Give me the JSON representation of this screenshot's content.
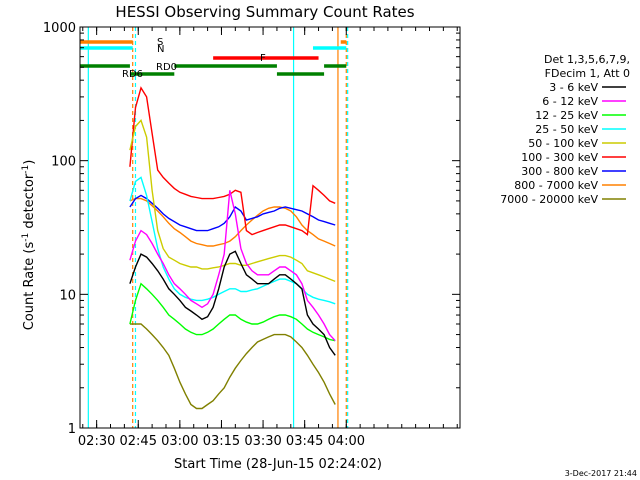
{
  "chart_data": {
    "type": "line",
    "title": "HESSI Observing Summary Count Rates",
    "xlabel": "Start Time (28-Jun-15 02:24:02)",
    "ylabel_main": "Count Rate (s",
    "ylabel_sup1": "-1",
    "ylabel_mid": " detector",
    "ylabel_sup2": "-1",
    "ylabel_end": ")",
    "yscale": "log",
    "ylim": [
      1,
      1000
    ],
    "xlim_minutes": [
      24,
      161
    ],
    "xticks": [
      {
        "minute": 30,
        "label": "02:30"
      },
      {
        "minute": 45,
        "label": "02:45"
      },
      {
        "minute": 60,
        "label": "03:00"
      },
      {
        "minute": 75,
        "label": "03:15"
      },
      {
        "minute": 90,
        "label": "03:30"
      },
      {
        "minute": 105,
        "label": "03:45"
      },
      {
        "minute": 120,
        "label": "04:00"
      }
    ],
    "yticks": [
      {
        "value": 1,
        "label": "1"
      },
      {
        "value": 10,
        "label": "10"
      },
      {
        "value": 100,
        "label": "100"
      },
      {
        "value": 1000,
        "label": "1000"
      }
    ],
    "legend_header": [
      "Det 1,3,5,6,7,9,",
      "FDecim 1, Att 0"
    ],
    "series": [
      {
        "name": "3 - 6 keV",
        "color": "#000000",
        "x": [
          42,
          44,
          46,
          48,
          50,
          52,
          54,
          56,
          58,
          60,
          62,
          64,
          66,
          68,
          70,
          72,
          74,
          76,
          78,
          80,
          82,
          84,
          86,
          88,
          90,
          92,
          94,
          96,
          98,
          100,
          102,
          104,
          106,
          108,
          110,
          112,
          114,
          116
        ],
        "y": [
          12,
          16,
          20,
          19,
          17,
          15,
          13,
          11,
          10,
          9,
          8,
          7.5,
          7,
          6.5,
          6.8,
          8,
          11,
          16,
          20,
          21,
          17,
          14,
          13,
          12,
          12,
          12,
          13,
          14,
          14,
          13,
          12,
          11,
          7,
          6,
          5.5,
          5,
          4,
          3.5
        ]
      },
      {
        "name": "6 - 12 keV",
        "color": "#ff00ff",
        "x": [
          42,
          44,
          46,
          48,
          50,
          52,
          54,
          56,
          58,
          60,
          62,
          64,
          66,
          68,
          70,
          72,
          74,
          76,
          78,
          80,
          82,
          84,
          86,
          88,
          90,
          92,
          94,
          96,
          98,
          100,
          102,
          104,
          106,
          108,
          110,
          112,
          114,
          116
        ],
        "y": [
          18,
          25,
          30,
          28,
          24,
          20,
          17,
          14,
          12,
          11,
          10,
          9,
          8.5,
          8,
          8.5,
          10,
          14,
          20,
          60,
          40,
          22,
          17,
          15,
          14,
          14,
          14,
          15,
          16,
          16,
          15,
          14,
          12,
          9,
          8,
          7,
          6,
          5,
          4.5
        ]
      },
      {
        "name": "12 - 25 keV",
        "color": "#00ff00",
        "x": [
          42,
          44,
          46,
          48,
          50,
          52,
          54,
          56,
          58,
          60,
          62,
          64,
          66,
          68,
          70,
          72,
          74,
          76,
          78,
          80,
          82,
          84,
          86,
          88,
          90,
          92,
          94,
          96,
          98,
          100,
          102,
          104,
          106,
          108,
          110,
          112,
          114,
          116
        ],
        "y": [
          6,
          9,
          12,
          11,
          10,
          9,
          8,
          7,
          6.5,
          6,
          5.5,
          5.2,
          5,
          5,
          5.2,
          5.5,
          6,
          6.5,
          7,
          7,
          6.5,
          6.2,
          6,
          6,
          6.2,
          6.5,
          6.8,
          7,
          7,
          6.8,
          6.5,
          6,
          5.5,
          5.2,
          5,
          4.8,
          4.6,
          4.5
        ]
      },
      {
        "name": "25 - 50 keV",
        "color": "#00ffff",
        "x": [
          42,
          44,
          46,
          48,
          50,
          52,
          54,
          56,
          58,
          60,
          62,
          64,
          66,
          68,
          70,
          72,
          74,
          76,
          78,
          80,
          82,
          84,
          86,
          88,
          90,
          92,
          94,
          96,
          98,
          100,
          102,
          104,
          106,
          108,
          110,
          112,
          114,
          116
        ],
        "y": [
          50,
          70,
          75,
          55,
          35,
          22,
          16,
          13,
          11,
          10,
          9.5,
          9.2,
          9,
          9,
          9.2,
          9.5,
          10,
          10.5,
          11,
          11,
          10.5,
          10.5,
          10.8,
          11,
          11.5,
          12,
          12.5,
          13,
          13,
          12.5,
          12,
          11,
          10,
          9.5,
          9.2,
          9,
          8.8,
          8.5
        ]
      },
      {
        "name": "50 - 100 keV",
        "color": "#cccc00",
        "x": [
          42,
          44,
          46,
          48,
          50,
          52,
          54,
          56,
          58,
          60,
          62,
          64,
          66,
          68,
          70,
          72,
          74,
          76,
          78,
          80,
          82,
          84,
          86,
          88,
          90,
          92,
          94,
          96,
          98,
          100,
          102,
          104,
          106,
          108,
          110,
          112,
          114,
          116
        ],
        "y": [
          120,
          180,
          200,
          150,
          60,
          30,
          22,
          19,
          18,
          17,
          16.5,
          16,
          16,
          15.5,
          15.5,
          15.8,
          16,
          16.5,
          17,
          17,
          16.5,
          16.5,
          17,
          17.5,
          18,
          18.5,
          19,
          19.5,
          19.5,
          19,
          18,
          17,
          15,
          14.5,
          14,
          13.5,
          13,
          12.5
        ]
      },
      {
        "name": "100 - 300 keV",
        "color": "#ff0000",
        "x": [
          42,
          44,
          46,
          48,
          50,
          52,
          54,
          56,
          58,
          60,
          62,
          64,
          66,
          68,
          70,
          72,
          74,
          76,
          78,
          80,
          82,
          84,
          86,
          88,
          90,
          92,
          94,
          96,
          98,
          100,
          102,
          104,
          106,
          108,
          110,
          112,
          114,
          116
        ],
        "y": [
          90,
          250,
          350,
          300,
          160,
          85,
          75,
          68,
          62,
          58,
          56,
          54,
          53,
          52,
          52,
          52,
          53,
          54,
          56,
          60,
          58,
          30,
          28,
          29,
          30,
          31,
          32,
          33,
          33,
          32,
          31,
          30,
          28,
          65,
          60,
          55,
          50,
          48
        ]
      },
      {
        "name": "300 - 800 keV",
        "color": "#0000ff",
        "x": [
          42,
          44,
          46,
          48,
          50,
          52,
          54,
          56,
          58,
          60,
          62,
          64,
          66,
          68,
          70,
          72,
          74,
          76,
          78,
          80,
          82,
          84,
          86,
          88,
          90,
          92,
          94,
          96,
          98,
          100,
          102,
          104,
          106,
          108,
          110,
          112,
          114,
          116
        ],
        "y": [
          45,
          52,
          55,
          52,
          48,
          44,
          40,
          37,
          35,
          33,
          32,
          31,
          30,
          30,
          30,
          31,
          32,
          34,
          38,
          45,
          42,
          36,
          37,
          38,
          40,
          41,
          42,
          44,
          45,
          44,
          43,
          42,
          40,
          38,
          36,
          35,
          34,
          33
        ]
      },
      {
        "name": "800 - 7000 keV",
        "color": "#ff8000",
        "x": [
          42,
          44,
          46,
          48,
          50,
          52,
          54,
          56,
          58,
          60,
          62,
          64,
          66,
          68,
          70,
          72,
          74,
          76,
          78,
          80,
          82,
          84,
          86,
          88,
          90,
          92,
          94,
          96,
          98,
          100,
          102,
          104,
          106,
          108,
          110,
          112,
          114,
          116
        ],
        "y": [
          50,
          52,
          52,
          50,
          46,
          42,
          38,
          34,
          31,
          29,
          27,
          25,
          24,
          23.5,
          23,
          23,
          23.5,
          24,
          25,
          27,
          30,
          33,
          36,
          39,
          42,
          44,
          45,
          45,
          44,
          42,
          38,
          33,
          30,
          28,
          26,
          25,
          24,
          23
        ]
      },
      {
        "name": "7000 - 20000 keV",
        "color": "#808000",
        "x": [
          42,
          44,
          46,
          48,
          50,
          52,
          54,
          56,
          58,
          60,
          62,
          64,
          66,
          68,
          70,
          72,
          74,
          76,
          78,
          80,
          82,
          84,
          86,
          88,
          90,
          92,
          94,
          96,
          98,
          100,
          102,
          104,
          106,
          108,
          110,
          112,
          114,
          116
        ],
        "y": [
          6,
          6,
          6,
          5.5,
          5,
          4.5,
          4,
          3.5,
          2.8,
          2.2,
          1.8,
          1.5,
          1.4,
          1.4,
          1.5,
          1.6,
          1.8,
          2,
          2.4,
          2.8,
          3.2,
          3.6,
          4,
          4.4,
          4.6,
          4.8,
          5,
          5,
          5,
          4.8,
          4.4,
          4,
          3.5,
          3,
          2.6,
          2.2,
          1.8,
          1.5
        ]
      }
    ],
    "annotations": [
      {
        "text": "S",
        "color": "#ff8000"
      },
      {
        "text": "N",
        "color": "#00ffff"
      },
      {
        "text": "RD0",
        "color": "#008000"
      },
      {
        "text": "RD6",
        "color": "#008000"
      },
      {
        "text": "F",
        "color": "#ff0000"
      }
    ],
    "bars": [
      {
        "name": "S",
        "color": "#ff8000",
        "segments": [
          [
            24,
            43
          ],
          [
            118,
            120
          ]
        ]
      },
      {
        "name": "N",
        "color": "#00ffff",
        "segments": [
          [
            24,
            43
          ],
          [
            108,
            120
          ]
        ]
      },
      {
        "name": "F",
        "color": "#ff0000",
        "segments": [
          [
            72,
            110
          ]
        ]
      },
      {
        "name": "RD0",
        "color": "#008000",
        "segments": [
          [
            24,
            42
          ],
          [
            58,
            95
          ],
          [
            112,
            120
          ]
        ]
      },
      {
        "name": "RD6",
        "color": "#008000",
        "segments": [
          [
            42,
            58
          ],
          [
            95,
            112
          ]
        ]
      }
    ],
    "vlines": [
      {
        "minute": 27,
        "color": "#00ffff",
        "dashed": false
      },
      {
        "minute": 43,
        "color": "#ff8000",
        "dashed": true
      },
      {
        "minute": 44,
        "color": "#00ffff",
        "dashed": true
      },
      {
        "minute": 101,
        "color": "#00ffff",
        "dashed": false
      },
      {
        "minute": 117,
        "color": "#ff8000",
        "dashed": false
      },
      {
        "minute": 120,
        "color": "#ff8000",
        "dashed": true
      },
      {
        "minute": 120.5,
        "color": "#00ffff",
        "dashed": true
      }
    ],
    "footer": "3-Dec-2017 21:44"
  }
}
